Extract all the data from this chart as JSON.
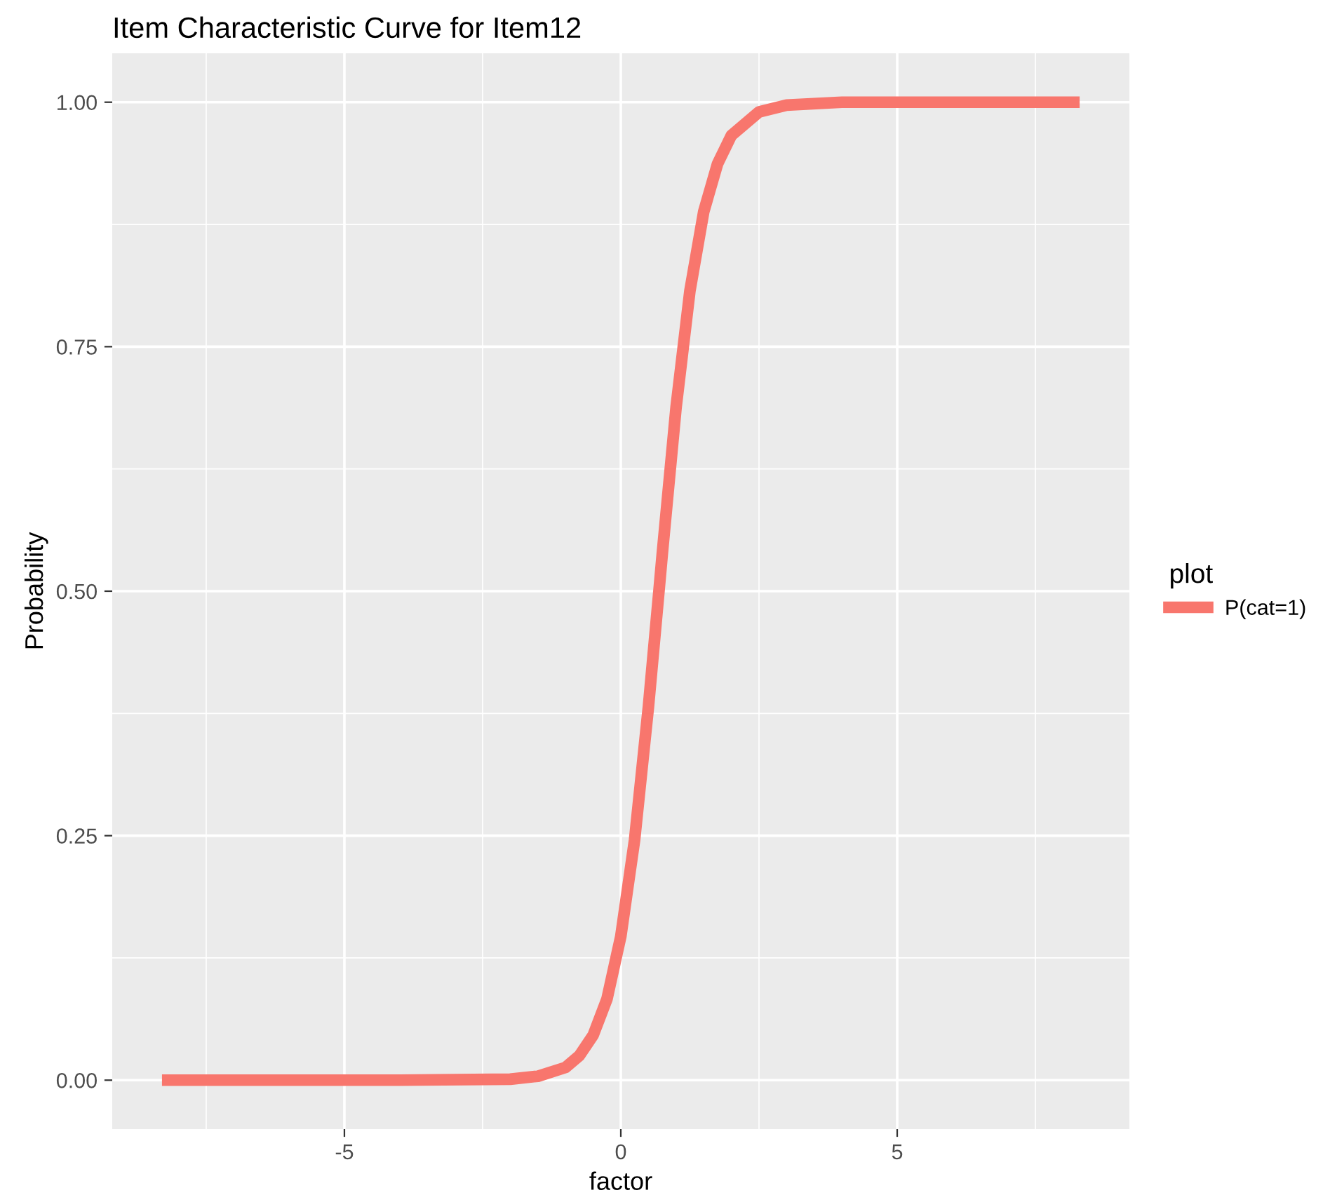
{
  "chart_data": {
    "type": "line",
    "title": "Item Characteristic Curve for Item12",
    "xlabel": "factor",
    "ylabel": "Probability",
    "legend_title": "plot",
    "x": [
      -8.3,
      -4,
      -2,
      -1.5,
      -1,
      -0.75,
      -0.5,
      -0.25,
      0,
      0.25,
      0.5,
      0.69,
      0.75,
      1.0,
      1.25,
      1.5,
      1.75,
      2.0,
      2.5,
      3,
      4,
      8.3
    ],
    "series": [
      {
        "name": "P(cat=1)",
        "color": "#f8766d",
        "values": [
          0,
          0,
          0.001,
          0.004,
          0.013,
          0.025,
          0.046,
          0.083,
          0.147,
          0.246,
          0.382,
          0.5,
          0.538,
          0.688,
          0.807,
          0.888,
          0.937,
          0.966,
          0.99,
          0.997,
          1,
          1
        ]
      }
    ],
    "xlim": [
      -9.2,
      9.2
    ],
    "ylim": [
      -0.05,
      1.05
    ],
    "xticks": [
      -5,
      0,
      5
    ],
    "yticks": [
      {
        "value": 0,
        "label": "0.00"
      },
      {
        "value": 0.25,
        "label": "0.25"
      },
      {
        "value": 0.5,
        "label": "0.50"
      },
      {
        "value": 0.75,
        "label": "0.75"
      },
      {
        "value": 1,
        "label": "1.00"
      }
    ],
    "grid": true,
    "legend": "right",
    "line_style": "solid"
  }
}
